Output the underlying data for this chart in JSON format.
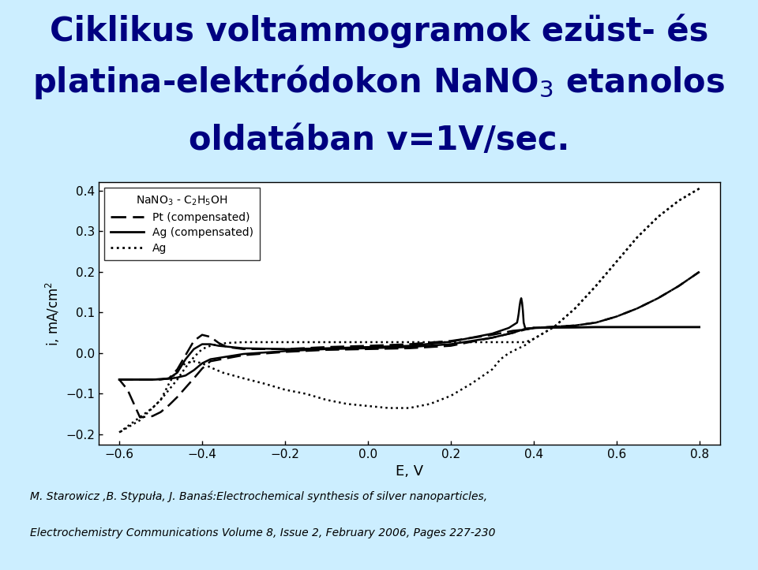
{
  "bg_color": "#cceeff",
  "plot_bg": "#ffffff",
  "footer_bg": "#ffffff",
  "xlabel": "E, V",
  "ylabel": "i, mA/cm$^2$",
  "xlim": [
    -0.65,
    0.85
  ],
  "ylim": [
    -0.225,
    0.42
  ],
  "xticks": [
    -0.6,
    -0.4,
    -0.2,
    0.0,
    0.2,
    0.4,
    0.6,
    0.8
  ],
  "yticks": [
    -0.2,
    -0.1,
    0.0,
    0.1,
    0.2,
    0.3,
    0.4
  ],
  "footer_line1": "M. Starowicz ,B. Stypuła, J. Banaś:Electrochemical synthesis of silver nanoparticles,",
  "footer_line2": "Electrochemistry Communications Volume 8, Issue 2, February 2006, Pages 227-230",
  "title_color": "#000080"
}
